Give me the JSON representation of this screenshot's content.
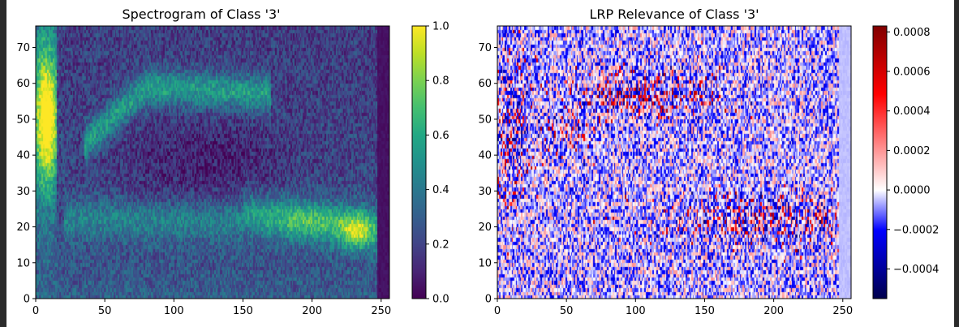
{
  "chart_data": [
    {
      "type": "heatmap",
      "title": "Spectrogram of Class '3'",
      "xlabel": "",
      "ylabel": "",
      "xlim": [
        0,
        256
      ],
      "ylim": [
        0,
        76
      ],
      "xticks": [
        "0",
        "50",
        "100",
        "150",
        "200",
        "250"
      ],
      "yticks": [
        "0",
        "10",
        "20",
        "30",
        "40",
        "50",
        "60",
        "70"
      ],
      "colormap": "viridis",
      "colorbar": {
        "range": [
          0.0,
          1.0
        ],
        "ticks": [
          "0.0",
          "0.2",
          "0.4",
          "0.6",
          "0.8",
          "1.0"
        ]
      },
      "features": [
        {
          "description": "bright vertical band",
          "x": [
            0,
            15
          ],
          "y": [
            35,
            70
          ],
          "value": 0.95
        },
        {
          "description": "rising formant",
          "x": [
            40,
            160
          ],
          "y": [
            48,
            62
          ],
          "value": 0.65
        },
        {
          "description": "low formant band",
          "x": [
            150,
            250
          ],
          "y": [
            15,
            28
          ],
          "value": 0.65
        },
        {
          "description": "hot spot",
          "x": 232,
          "y": 19,
          "value": 0.9
        },
        {
          "description": "silent right edge",
          "x": [
            248,
            256
          ],
          "y": [
            0,
            76
          ],
          "value": 0.0
        }
      ]
    },
    {
      "type": "heatmap",
      "title": "LRP Relevance of Class '3'",
      "xlabel": "",
      "ylabel": "",
      "xlim": [
        0,
        256
      ],
      "ylim": [
        0,
        76
      ],
      "xticks": [
        "0",
        "50",
        "100",
        "150",
        "200",
        "250"
      ],
      "yticks": [
        "0",
        "10",
        "20",
        "30",
        "40",
        "50",
        "60",
        "70"
      ],
      "colormap": "seismic",
      "colorbar": {
        "range": [
          -0.00055,
          0.00083
        ],
        "ticks": [
          "−0.0004",
          "−0.0002",
          "0.0000",
          "0.0002",
          "0.0004",
          "0.0006",
          "0.0008"
        ]
      },
      "features": [
        {
          "description": "positive relevance cluster",
          "x": [
            70,
            140
          ],
          "y": [
            50,
            62
          ]
        },
        {
          "description": "positive relevance cluster",
          "x": [
            150,
            245
          ],
          "y": [
            15,
            28
          ]
        },
        {
          "description": "positive relevance cluster",
          "x": [
            0,
            20
          ],
          "y": [
            35,
            65
          ]
        },
        {
          "description": "near-zero right edge",
          "x": [
            248,
            256
          ],
          "y": [
            0,
            76
          ]
        }
      ]
    }
  ]
}
